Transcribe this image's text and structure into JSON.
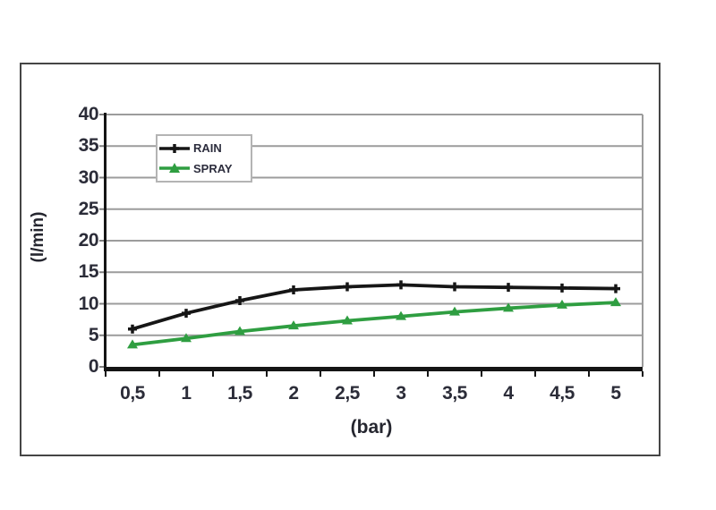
{
  "chart_data": {
    "type": "line",
    "title": "",
    "xlabel": "(bar)",
    "ylabel": "(l/min)",
    "x": [
      0.5,
      1,
      1.5,
      2,
      2.5,
      3,
      3.5,
      4,
      4.5,
      5
    ],
    "x_tick_labels": [
      "0,5",
      "1",
      "1,5",
      "2",
      "2,5",
      "3",
      "3,5",
      "4",
      "4,5",
      "5"
    ],
    "y_ticks": [
      0,
      5,
      10,
      15,
      20,
      25,
      30,
      35,
      40
    ],
    "ylim": [
      0,
      40
    ],
    "grid": "horizontal-gray",
    "legend_position": "top-left-inside",
    "series": [
      {
        "name": "RAIN",
        "color": "#161616",
        "marker": "plus",
        "values": [
          6,
          8.5,
          10.5,
          12.2,
          12.7,
          13,
          12.7,
          12.6,
          12.5,
          12.4
        ]
      },
      {
        "name": "SPRAY",
        "color": "#2f9e41",
        "marker": "triangle",
        "values": [
          3.5,
          4.5,
          5.6,
          6.5,
          7.3,
          8,
          8.7,
          9.3,
          9.8,
          10.2
        ]
      }
    ]
  },
  "colors": {
    "grid": "#9c9c9c",
    "axis": "#141414",
    "tick": "#808080",
    "text": "#2b2c38",
    "frame_border": "#454545",
    "background": "#ffffff"
  }
}
